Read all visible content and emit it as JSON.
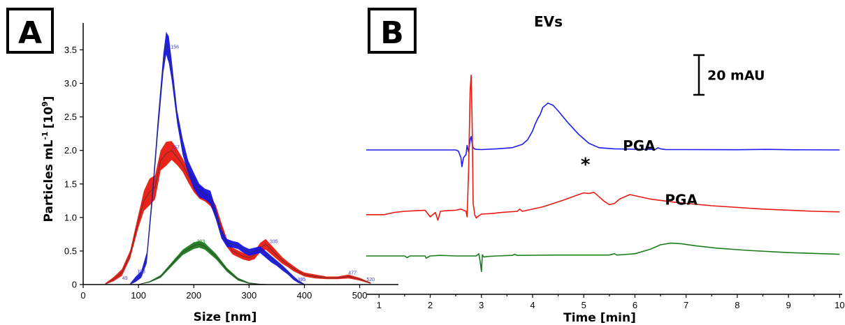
{
  "chart_data": [
    {
      "type": "area",
      "panel_label": "A",
      "xlabel": "Size [nm]",
      "ylabel": "Particles mL",
      "ylabel_superscript": "-1",
      "ylabel_suffix": "[10",
      "ylabel_exp": "9",
      "ylabel_end": "]",
      "xlim": [
        0,
        570
      ],
      "ylim": [
        0,
        3.9
      ],
      "xticks": [
        "0",
        "100",
        "200",
        "300",
        "400",
        "500"
      ],
      "yticks": [
        "0",
        "0.5",
        "1.0",
        "1.5",
        "2.0",
        "2.5",
        "3.0",
        "3.5"
      ],
      "series": [
        {
          "color": "#e8190f",
          "x": [
            40,
            55,
            70,
            85,
            100,
            110,
            120,
            130,
            140,
            150,
            160,
            170,
            180,
            190,
            200,
            210,
            220,
            230,
            240,
            250,
            260,
            270,
            280,
            290,
            300,
            310,
            320,
            330,
            340,
            350,
            360,
            370,
            380,
            390,
            400,
            420,
            440,
            460,
            480,
            500,
            520
          ],
          "values": [
            0,
            0.08,
            0.18,
            0.45,
            0.95,
            1.25,
            1.38,
            1.45,
            1.85,
            1.95,
            2.0,
            1.9,
            1.78,
            1.62,
            1.5,
            1.38,
            1.32,
            1.25,
            1.1,
            0.85,
            0.62,
            0.5,
            0.46,
            0.42,
            0.4,
            0.44,
            0.55,
            0.6,
            0.52,
            0.44,
            0.36,
            0.3,
            0.24,
            0.19,
            0.15,
            0.12,
            0.1,
            0.1,
            0.12,
            0.08,
            0.02
          ],
          "band": [
            0.02,
            0.03,
            0.05,
            0.06,
            0.1,
            0.15,
            0.2,
            0.18,
            0.15,
            0.18,
            0.14,
            0.12,
            0.1,
            0.1,
            0.12,
            0.1,
            0.08,
            0.08,
            0.08,
            0.07,
            0.06,
            0.05,
            0.05,
            0.05,
            0.05,
            0.06,
            0.07,
            0.08,
            0.07,
            0.06,
            0.05,
            0.04,
            0.04,
            0.03,
            0.03,
            0.03,
            0.02,
            0.02,
            0.03,
            0.02,
            0.01
          ],
          "peak_labels": [
            {
              "x": 157,
              "y": 2.0,
              "text": "157"
            },
            {
              "x": 335,
              "y": 0.6,
              "text": "335"
            },
            {
              "x": 477,
              "y": 0.13,
              "text": "477"
            },
            {
              "x": 68,
              "y": 0.05,
              "text": "49"
            }
          ]
        },
        {
          "color": "#1414e6",
          "x": [
            85,
            95,
            105,
            115,
            125,
            135,
            145,
            150,
            155,
            160,
            170,
            180,
            190,
            200,
            210,
            220,
            230,
            240,
            250,
            260,
            270,
            280,
            290,
            300,
            310,
            320,
            330,
            340,
            350,
            360,
            370,
            380,
            390,
            400
          ],
          "values": [
            0,
            0.08,
            0.15,
            0.4,
            1.3,
            2.35,
            3.3,
            3.6,
            3.5,
            3.2,
            2.5,
            2.05,
            1.75,
            1.55,
            1.4,
            1.35,
            1.3,
            1.05,
            0.75,
            0.62,
            0.6,
            0.58,
            0.52,
            0.48,
            0.5,
            0.52,
            0.45,
            0.38,
            0.32,
            0.25,
            0.18,
            0.1,
            0.04,
            0
          ],
          "band": [
            0.02,
            0.04,
            0.05,
            0.08,
            0.1,
            0.12,
            0.14,
            0.17,
            0.2,
            0.15,
            0.1,
            0.12,
            0.1,
            0.12,
            0.1,
            0.08,
            0.1,
            0.08,
            0.06,
            0.06,
            0.05,
            0.05,
            0.05,
            0.05,
            0.05,
            0.05,
            0.05,
            0.05,
            0.04,
            0.04,
            0.03,
            0.03,
            0.02,
            0.01
          ],
          "peak_labels": [
            {
              "x": 156,
              "y": 3.5,
              "text": "156"
            },
            {
              "x": 95,
              "y": 0.15,
              "text": "108"
            },
            {
              "x": 385,
              "y": 0.03,
              "text": "395"
            },
            {
              "x": 510,
              "y": 0.03,
              "text": "520"
            }
          ]
        },
        {
          "color": "#1e7a1e",
          "x": [
            100,
            120,
            140,
            160,
            180,
            200,
            210,
            220,
            240,
            260,
            280,
            300,
            320,
            340
          ],
          "values": [
            0,
            0.04,
            0.12,
            0.3,
            0.48,
            0.58,
            0.6,
            0.57,
            0.42,
            0.22,
            0.08,
            0.02,
            0.005,
            0
          ],
          "band": [
            0.005,
            0.01,
            0.02,
            0.03,
            0.04,
            0.05,
            0.05,
            0.05,
            0.04,
            0.03,
            0.02,
            0.01,
            0.005,
            0
          ],
          "peak_labels": [
            {
              "x": 203,
              "y": 0.6,
              "text": "203"
            }
          ]
        }
      ]
    },
    {
      "type": "line",
      "panel_label": "B",
      "xlabel": "Time [min]",
      "xlim": [
        0.75,
        10.05
      ],
      "xticks": [
        "1",
        "2",
        "3",
        "4",
        "5",
        "6",
        "7",
        "8",
        "9",
        "10"
      ],
      "scale_bar": {
        "label": "20 mAU",
        "mau": 20
      },
      "annotations": [
        {
          "text": "EVs",
          "x": 4.3,
          "series": 0
        },
        {
          "text": "*",
          "x": 5.05,
          "series": 1
        },
        {
          "text": "PGA",
          "x": 5.9,
          "series": 1
        },
        {
          "text": "PGA",
          "x": 6.75,
          "series": 2
        }
      ],
      "series": [
        {
          "color": "#1c1cf2",
          "baseline_mau": 0,
          "t": [
            0.75,
            2.5,
            2.55,
            2.6,
            2.62,
            2.65,
            2.7,
            2.72,
            2.75,
            2.78,
            2.8,
            2.83,
            2.86,
            2.9,
            3.0,
            3.3,
            3.6,
            3.8,
            3.9,
            4.0,
            4.05,
            4.1,
            4.15,
            4.2,
            4.3,
            4.4,
            4.5,
            4.7,
            4.9,
            5.1,
            5.3,
            5.6,
            6.0,
            6.4,
            6.45,
            6.5,
            6.6,
            7.0,
            8.0,
            8.6,
            9.0,
            10.0
          ],
          "values": [
            0,
            0,
            -1,
            -7,
            -15,
            -7,
            -4,
            4,
            -2,
            9,
            12,
            3,
            1,
            0.5,
            0.3,
            1,
            2,
            5,
            9,
            17,
            23,
            28,
            32,
            38,
            42,
            40,
            35,
            24,
            14,
            6,
            2,
            1,
            0.6,
            0.5,
            2,
            1,
            0.4,
            0.3,
            0.2,
            0.5,
            0.2,
            0
          ]
        },
        {
          "color": "#e8190f",
          "baseline_mau": -58,
          "t": [
            0.75,
            1.0,
            1.1,
            1.3,
            1.5,
            1.7,
            1.9,
            2.0,
            2.1,
            2.15,
            2.2,
            2.3,
            2.5,
            2.6,
            2.7,
            2.72,
            2.75,
            2.78,
            2.8,
            2.82,
            2.84,
            2.87,
            2.9,
            2.95,
            3.0,
            3.2,
            3.4,
            3.7,
            3.75,
            3.8,
            4.2,
            4.6,
            4.9,
            5.0,
            5.1,
            5.2,
            5.3,
            5.4,
            5.5,
            5.6,
            5.7,
            5.9,
            6.0,
            6.3,
            6.8,
            7.5,
            8.5,
            9.5,
            10.0
          ],
          "values": [
            0,
            0,
            0,
            2,
            3,
            3.5,
            4,
            -2,
            2,
            -5,
            3,
            3.5,
            4,
            5,
            3,
            -2,
            40,
            110,
            125,
            80,
            10,
            0,
            -3,
            -1,
            0.5,
            1,
            2,
            3,
            5,
            3,
            7,
            13,
            18,
            19.5,
            19,
            20,
            16,
            12,
            9,
            10,
            14,
            18,
            17,
            14,
            11,
            8,
            5,
            3,
            2.5
          ]
        },
        {
          "color": "#1a7d1a",
          "baseline_mau": -95,
          "t": [
            0.75,
            1.5,
            1.55,
            1.6,
            1.9,
            1.92,
            2.0,
            2.2,
            2.5,
            2.9,
            2.95,
            2.98,
            3.0,
            3.02,
            3.05,
            3.1,
            3.3,
            3.6,
            3.65,
            3.7,
            4.5,
            5.5,
            5.6,
            5.65,
            6.0,
            6.3,
            6.5,
            6.7,
            6.9,
            7.2,
            7.6,
            8.2,
            9.0,
            10.0
          ],
          "values": [
            0,
            0,
            -1.5,
            0,
            0,
            -2,
            0,
            0.5,
            0,
            0,
            2,
            -6,
            -14,
            1,
            -1,
            -0.5,
            0,
            0.5,
            1.5,
            0.5,
            0.8,
            0.8,
            2,
            0.8,
            2,
            6,
            10,
            11.5,
            11,
            9,
            7,
            5,
            3,
            1.5
          ]
        }
      ]
    }
  ]
}
